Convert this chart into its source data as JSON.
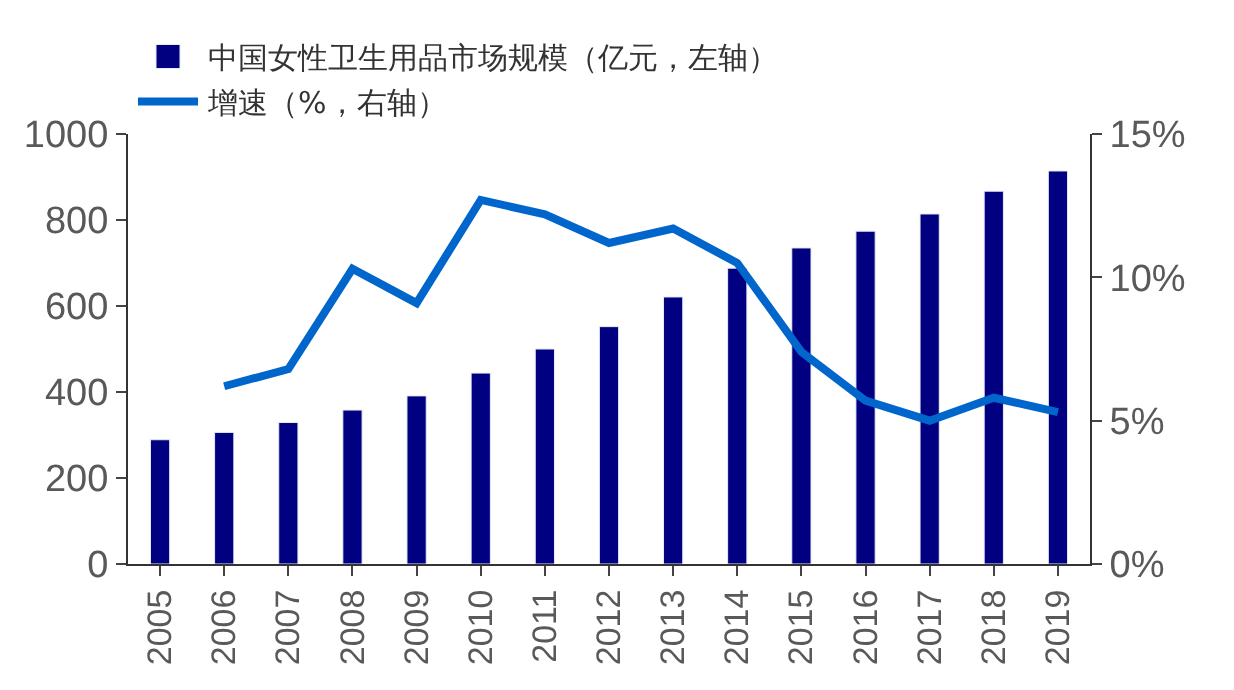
{
  "chart_data": {
    "type": "bar",
    "categories": [
      "2005",
      "2006",
      "2007",
      "2008",
      "2009",
      "2010",
      "2011",
      "2012",
      "2013",
      "2014",
      "2015",
      "2016",
      "2017",
      "2018",
      "2019"
    ],
    "series": [
      {
        "name": "中国女性卫生用品市场规模（亿元，左轴）",
        "color": "#000080",
        "values": [
          289,
          306,
          329,
          358,
          391,
          444,
          500,
          552,
          621,
          688,
          735,
          774,
          814,
          867,
          914
        ]
      },
      {
        "name": "增速（%，右轴）",
        "color": "#0066cc",
        "type": "line",
        "axis": "y2",
        "values": [
          null,
          6.2,
          6.8,
          10.3,
          9.1,
          12.7,
          12.2,
          11.2,
          11.7,
          10.5,
          7.4,
          5.7,
          5.0,
          5.8,
          5.3
        ]
      }
    ],
    "ylim": [
      0,
      1000
    ],
    "yticks": [
      0,
      200,
      400,
      600,
      800,
      1000
    ],
    "y2lim": [
      0,
      15
    ],
    "y2ticks": [
      {
        "value": 0,
        "label": "0%"
      },
      {
        "value": 5,
        "label": "5%"
      },
      {
        "value": 10,
        "label": "10%"
      },
      {
        "value": 15,
        "label": "15%"
      }
    ],
    "legend": "top left",
    "marker": "none",
    "line_style": "solid"
  }
}
